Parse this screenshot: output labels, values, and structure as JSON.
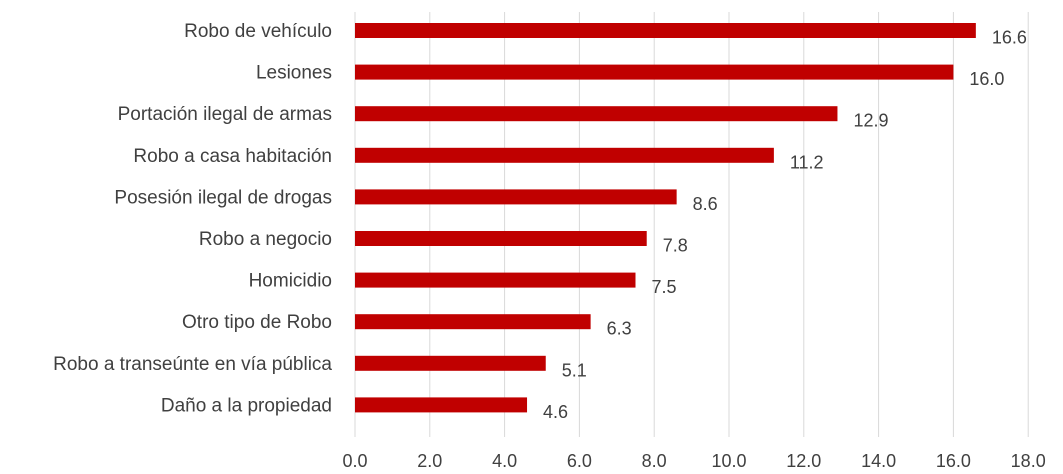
{
  "chart_data": {
    "type": "bar",
    "orientation": "horizontal",
    "title": "",
    "xlabel": "",
    "ylabel": "",
    "categories": [
      "Robo de vehículo",
      "Lesiones",
      "Portación ilegal de armas",
      "Robo a casa habitación",
      "Posesión ilegal de drogas",
      "Robo a negocio",
      "Homicidio",
      "Otro tipo de Robo",
      "Robo a transeúnte en vía pública",
      "Daño a la propiedad"
    ],
    "values": [
      16.6,
      16.0,
      12.9,
      11.2,
      8.6,
      7.8,
      7.5,
      6.3,
      5.1,
      4.6
    ],
    "value_labels": [
      "16.6",
      "16.0",
      "12.9",
      "11.2",
      "8.6",
      "7.8",
      "7.5",
      "6.3",
      "5.1",
      "4.6"
    ],
    "xlim": [
      0,
      18
    ],
    "xticks": [
      "0.0",
      "2.0",
      "4.0",
      "6.0",
      "8.0",
      "10.0",
      "12.0",
      "14.0",
      "16.0",
      "18.0"
    ],
    "grid": true,
    "legend": "none",
    "bar_color": "#c00000",
    "gridline_color": "#d9d9d9",
    "text_color": "#404040"
  }
}
